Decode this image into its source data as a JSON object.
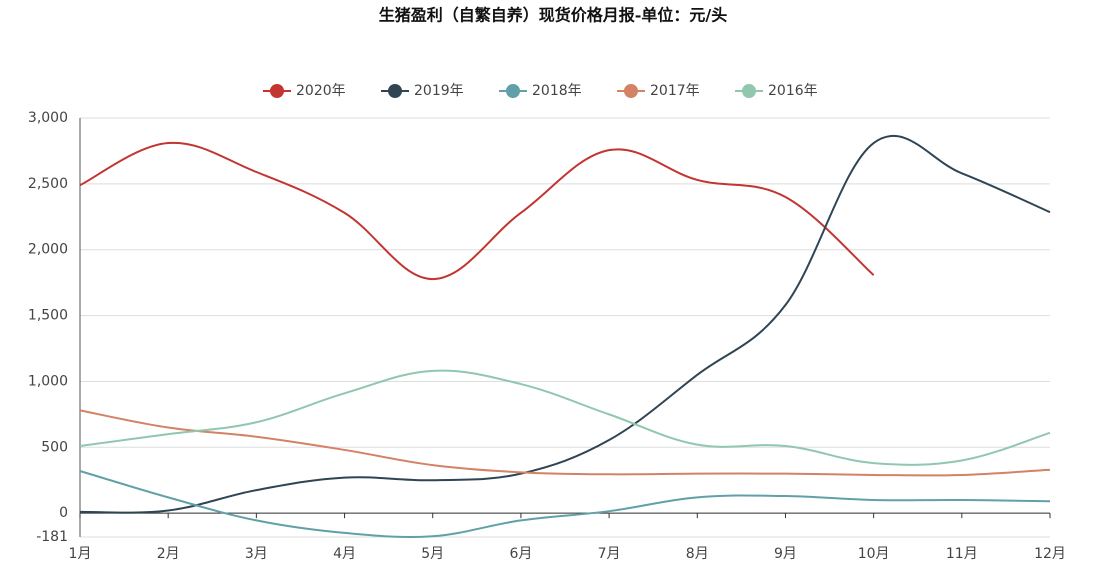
{
  "chart_data": {
    "type": "line",
    "title": "生猪盈利（自繁自养）现货价格月报-单位：元/头",
    "categories": [
      "1月",
      "2月",
      "3月",
      "4月",
      "5月",
      "6月",
      "7月",
      "8月",
      "9月",
      "10月",
      "11月",
      "12月"
    ],
    "series": [
      {
        "name": "2020年",
        "color": "#c23531",
        "values": [
          2490,
          2810,
          2590,
          2280,
          1777,
          2280,
          2756,
          2530,
          2400,
          1807,
          null,
          null
        ]
      },
      {
        "name": "2019年",
        "color": "#2f4554",
        "values": [
          10,
          20,
          175,
          270,
          250,
          300,
          555,
          1050,
          1580,
          2810,
          2580,
          2285
        ]
      },
      {
        "name": "2018年",
        "color": "#61a0a8",
        "values": [
          320,
          120,
          -55,
          -150,
          -175,
          -55,
          15,
          120,
          130,
          100,
          100,
          90
        ]
      },
      {
        "name": "2017年",
        "color": "#d48265",
        "values": [
          780,
          650,
          580,
          480,
          365,
          310,
          295,
          300,
          300,
          290,
          290,
          330
        ]
      },
      {
        "name": "2016年",
        "color": "#91c7ae",
        "values": [
          510,
          600,
          690,
          910,
          1080,
          980,
          750,
          520,
          510,
          380,
          400,
          610
        ]
      }
    ],
    "ylim": [
      -181,
      3000
    ],
    "yticks": [
      -181,
      0,
      500,
      {
        "value": 1000,
        "label": "1,000"
      },
      {
        "value": 1500,
        "label": "1,500"
      },
      {
        "value": 2000,
        "label": "2,000"
      },
      {
        "value": 2500,
        "label": "2,500"
      },
      {
        "value": 3000,
        "label": "3,000"
      }
    ],
    "grid": true
  }
}
